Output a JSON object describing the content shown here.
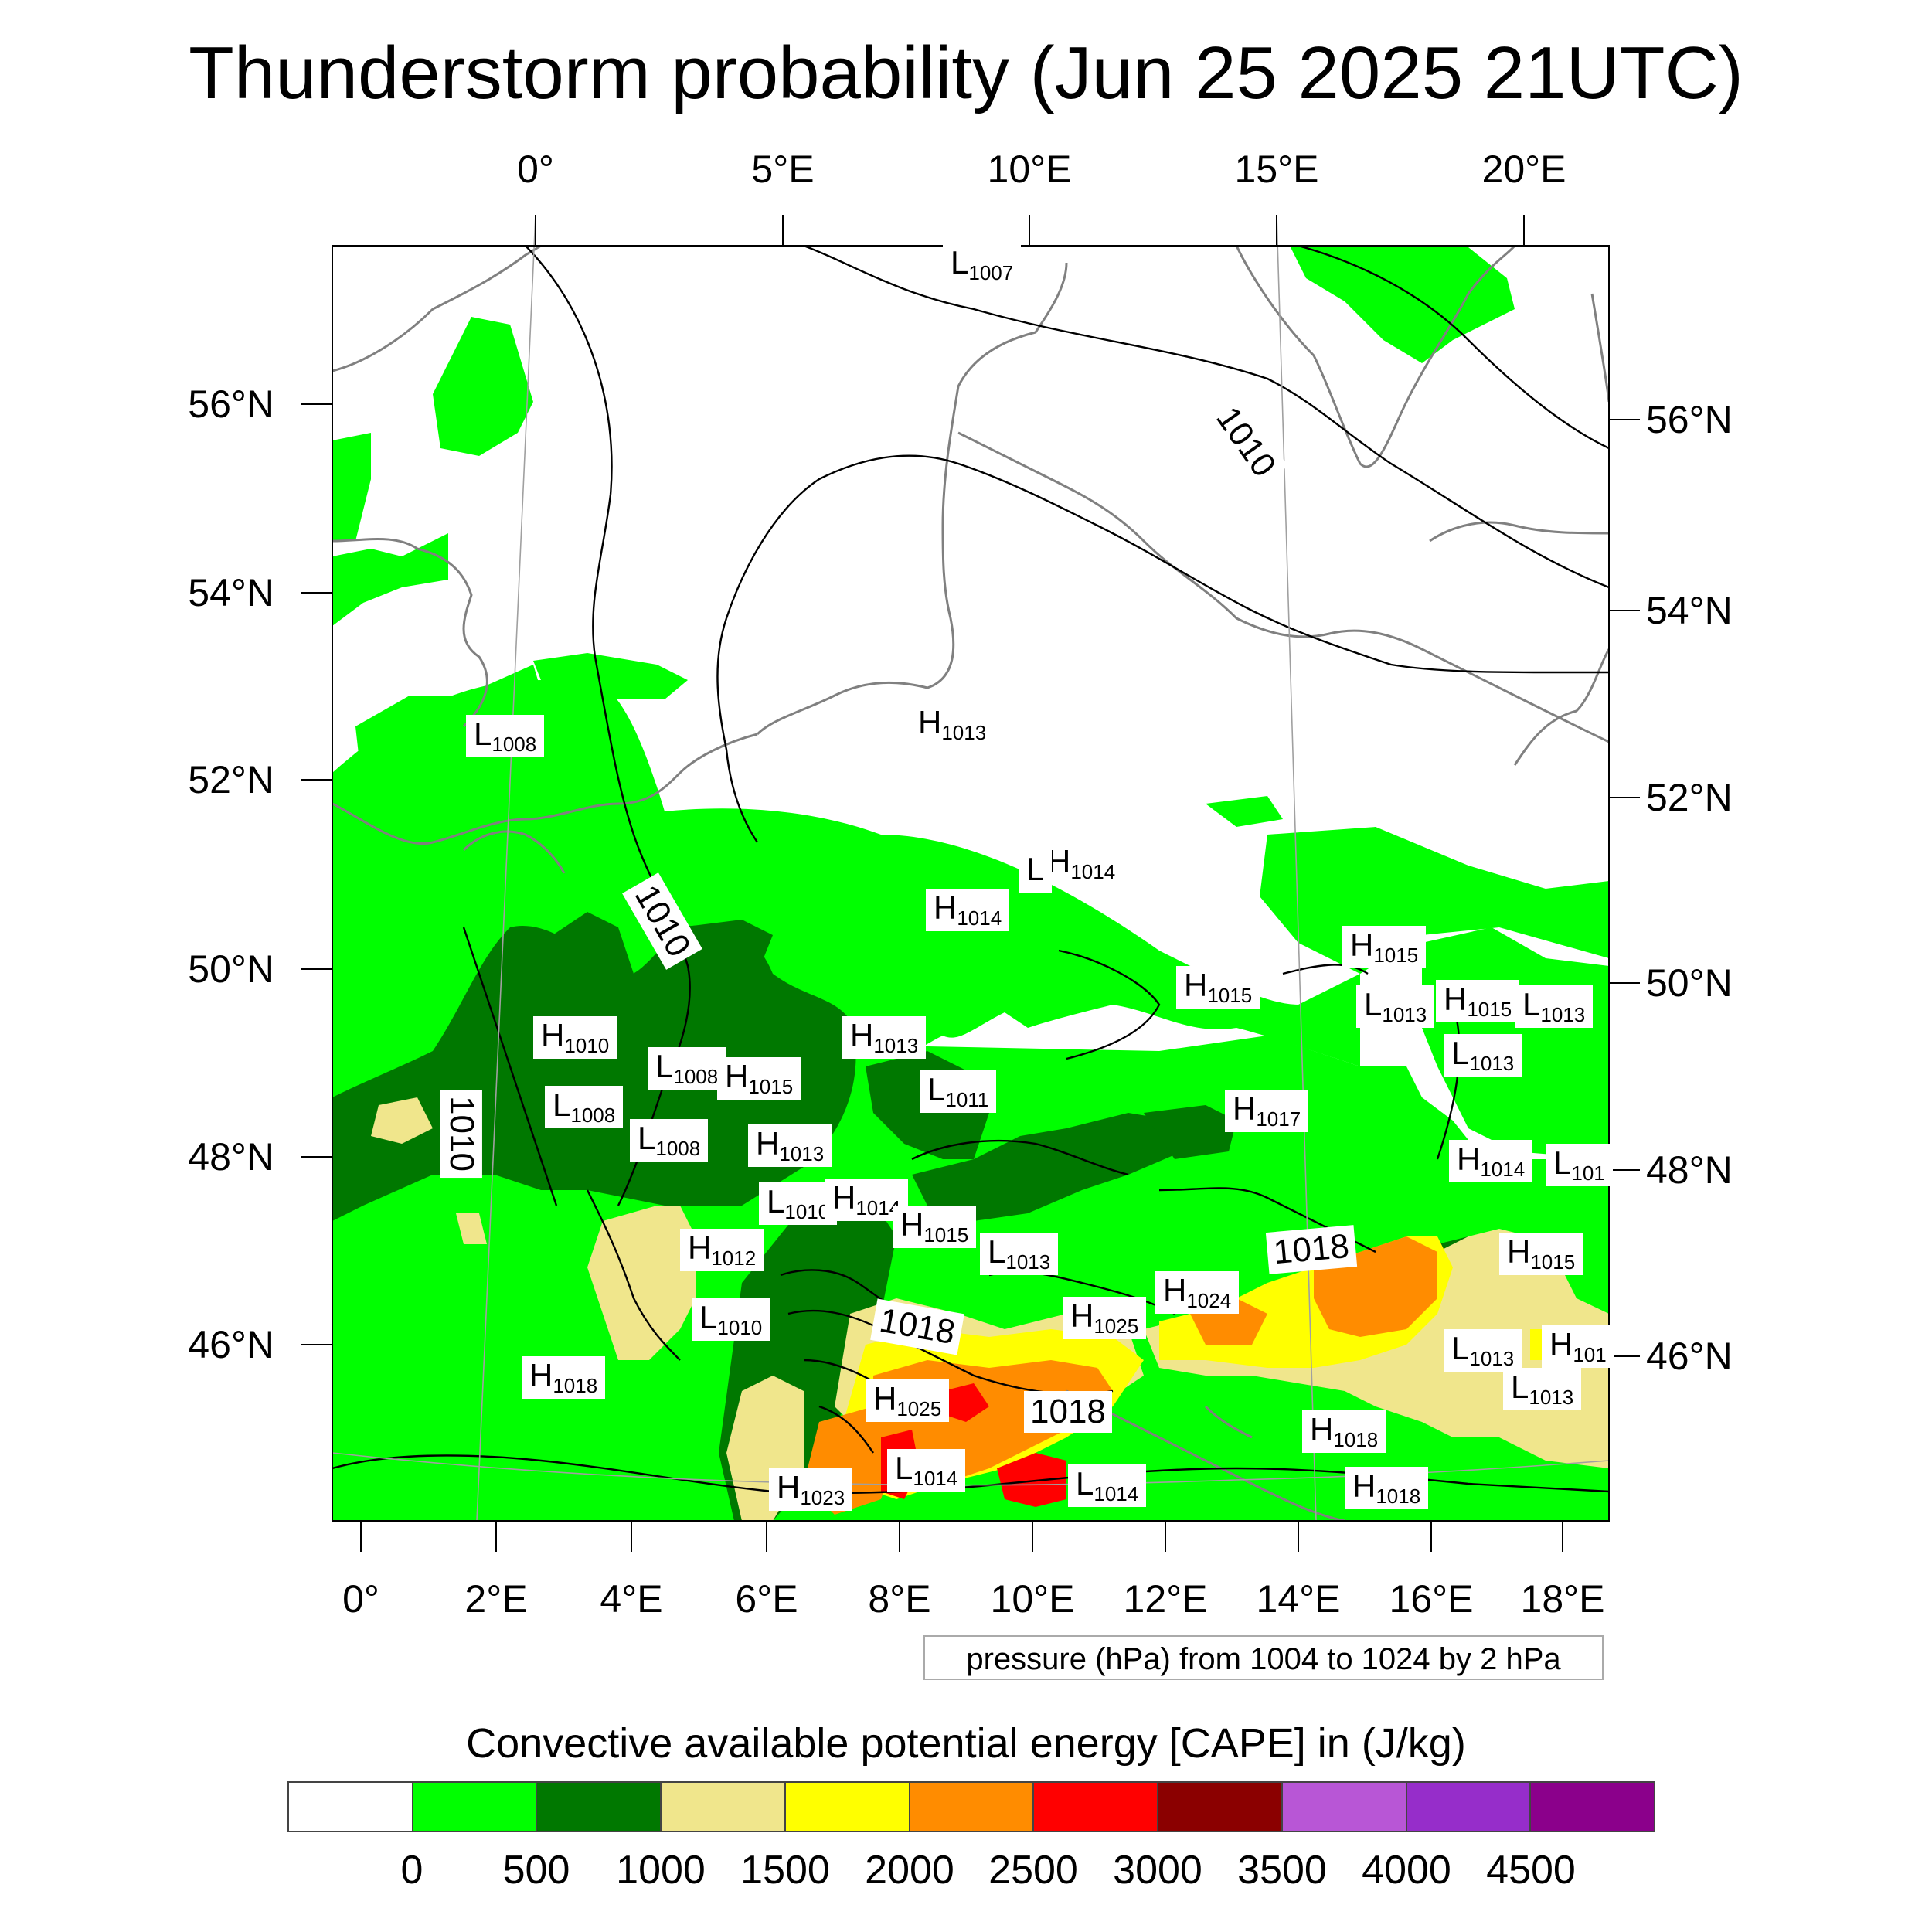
{
  "title": "Thunderstorm probability (Jun 25 2025 21UTC)",
  "top_lon_ticks": [
    "0°",
    "5°E",
    "10°E",
    "15°E",
    "20°E"
  ],
  "bottom_lon_ticks": [
    "0°",
    "2°E",
    "4°E",
    "6°E",
    "8°E",
    "10°E",
    "12°E",
    "14°E",
    "16°E",
    "18°E"
  ],
  "left_lat_ticks": [
    "56°N",
    "54°N",
    "52°N",
    "50°N",
    "48°N",
    "46°N"
  ],
  "right_lat_ticks": [
    "56°N",
    "54°N",
    "52°N",
    "50°N",
    "48°N",
    "46°N"
  ],
  "pressure_note": "pressure (hPa) from 1004 to 1024 by 2 hPa",
  "legend_title": "Convective available potential energy [CAPE] in (J/kg)",
  "colorbar": {
    "colors": [
      "#ffffff",
      "#00ff00",
      "#007800",
      "#f0e68c",
      "#ffff00",
      "#ff8c00",
      "#ff0000",
      "#8b0000",
      "#b856d6",
      "#962dca",
      "#8b008b"
    ],
    "labels": [
      "0",
      "500",
      "1000",
      "1500",
      "2000",
      "2500",
      "3000",
      "3500",
      "4000",
      "4500"
    ]
  },
  "isobar_labels": [
    "1010",
    "1010",
    "1010",
    "1018",
    "1018",
    "1018"
  ],
  "pressure_centers": [
    {
      "type": "L",
      "value": "1007"
    },
    {
      "type": "L",
      "value": "1008"
    },
    {
      "type": "H",
      "value": "1013"
    },
    {
      "type": "H",
      "value": "1014"
    },
    {
      "type": "L",
      "value": ""
    },
    {
      "type": "H",
      "value": "1014"
    },
    {
      "type": "H",
      "value": "1015"
    },
    {
      "type": "H",
      "value": "1015"
    },
    {
      "type": "L",
      "value": "1013"
    },
    {
      "type": "H",
      "value": "1015"
    },
    {
      "type": "L",
      "value": "1013"
    },
    {
      "type": "L",
      "value": "1013"
    },
    {
      "type": "H",
      "value": "1010"
    },
    {
      "type": "L",
      "value": "1008"
    },
    {
      "type": "H",
      "value": "1015"
    },
    {
      "type": "H",
      "value": "1013"
    },
    {
      "type": "L",
      "value": "1011"
    },
    {
      "type": "L",
      "value": "1008"
    },
    {
      "type": "L",
      "value": "1008"
    },
    {
      "type": "H",
      "value": "1013"
    },
    {
      "type": "H",
      "value": "1017"
    },
    {
      "type": "H",
      "value": "1014"
    },
    {
      "type": "L",
      "value": "101"
    },
    {
      "type": "L",
      "value": "1010"
    },
    {
      "type": "H",
      "value": "1014"
    },
    {
      "type": "H",
      "value": "1015"
    },
    {
      "type": "L",
      "value": "1013"
    },
    {
      "type": "H",
      "value": "1012"
    },
    {
      "type": "H",
      "value": "1015"
    },
    {
      "type": "H",
      "value": "1024"
    },
    {
      "type": "L",
      "value": "1010"
    },
    {
      "type": "H",
      "value": "1025"
    },
    {
      "type": "L",
      "value": "1013"
    },
    {
      "type": "H",
      "value": "101"
    },
    {
      "type": "L",
      "value": "1013"
    },
    {
      "type": "H",
      "value": "1018"
    },
    {
      "type": "H",
      "value": "1025"
    },
    {
      "type": "H",
      "value": "1018"
    },
    {
      "type": "L",
      "value": "1014"
    },
    {
      "type": "H",
      "value": "1023"
    },
    {
      "type": "L",
      "value": "1014"
    },
    {
      "type": "H",
      "value": "1018"
    }
  ]
}
